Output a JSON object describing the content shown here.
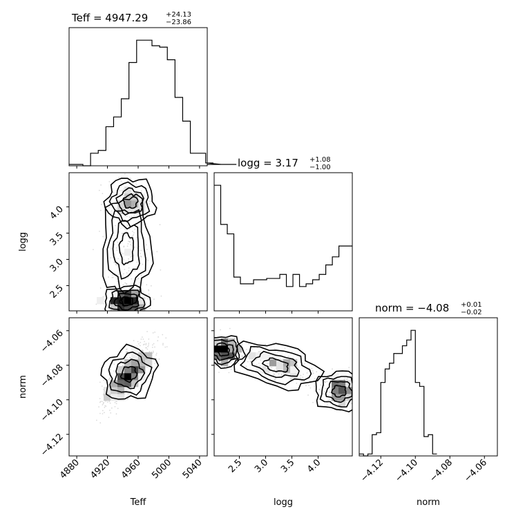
{
  "chart_data": [
    {
      "type": "histogram",
      "panel": "Teff",
      "title": {
        "prefix": "Teff = 4947.29",
        "sup": "+24.13",
        "sub": "−23.86"
      },
      "bin_edges_from": 4868,
      "bin_width": 10,
      "counts": [
        1,
        1,
        0,
        9,
        11,
        28,
        35,
        48,
        74,
        90,
        90,
        86,
        85,
        76,
        49,
        32,
        9,
        9,
        2,
        2,
        1,
        1,
        1
      ],
      "xlim": [
        4870,
        5050
      ],
      "xticks": [
        "4880",
        "4920",
        "4960",
        "5000",
        "5040"
      ],
      "xlabel": "Teff"
    },
    {
      "type": "histogram",
      "panel": "logg",
      "title": {
        "prefix": "logg = 3.17",
        "sup": "+1.08",
        "sub": "−1.00"
      },
      "bin_edges_from": 2.02,
      "bin_width": 0.125,
      "counts": [
        93,
        64,
        57,
        25,
        20,
        20,
        23,
        23,
        24,
        24,
        27,
        18,
        27,
        18,
        20,
        23,
        27,
        34,
        40,
        48,
        48
      ],
      "xlim": [
        2.02,
        4.65
      ],
      "xticks": [
        "2.5",
        "3.0",
        "3.5",
        "4.0"
      ],
      "yticks": [
        "2.5",
        "3.0",
        "3.5",
        "4.0"
      ],
      "ylabel": "logg",
      "xlabel": "logg"
    },
    {
      "type": "histogram",
      "panel": "norm",
      "title": {
        "prefix": "norm = −4.08",
        "sup": "+0.01",
        "sub": "−0.02"
      },
      "bin_edges_from": -4.1325,
      "bin_width": 0.0025,
      "counts": [
        1,
        0,
        1,
        11,
        12,
        38,
        45,
        48,
        53,
        53,
        57,
        60,
        65,
        38,
        36,
        10,
        11,
        1
      ],
      "xlim": [
        -4.1325,
        -4.0525
      ],
      "xticks": [
        "−4.12",
        "−4.10",
        "−4.08",
        "−4.06"
      ],
      "yticks": [
        "−4.06",
        "−4.08",
        "−4.10",
        "−4.12"
      ],
      "ylabel": "norm",
      "xlabel": "norm"
    },
    {
      "type": "scatter-density",
      "panel": "Teff vs logg",
      "clusters": [
        {
          "x": 4945,
          "y": 2.2,
          "sx": 14,
          "sy": 0.13,
          "n": 300
        },
        {
          "x": 4950,
          "y": 4.1,
          "sx": 15,
          "sy": 0.2,
          "n": 160
        },
        {
          "x": 4945,
          "y": 3.2,
          "sx": 15,
          "sy": 0.45,
          "n": 180
        }
      ]
    },
    {
      "type": "scatter-density",
      "panel": "Teff vs norm",
      "clusters": [
        {
          "x": 4948,
          "y": -4.085,
          "sx": 17,
          "sy": 0.009,
          "rho": 0.75,
          "n": 650
        }
      ]
    },
    {
      "type": "scatter-density",
      "panel": "logg vs norm",
      "clusters": [
        {
          "x": 2.2,
          "y": -4.072,
          "sx": 0.18,
          "sy": 0.004,
          "n": 230
        },
        {
          "x": 4.4,
          "y": -4.095,
          "sx": 0.22,
          "sy": 0.005,
          "n": 200
        },
        {
          "x": 3.2,
          "y": -4.08,
          "sx": 0.4,
          "sy": 0.006,
          "rho": -0.5,
          "n": 200
        }
      ]
    }
  ]
}
